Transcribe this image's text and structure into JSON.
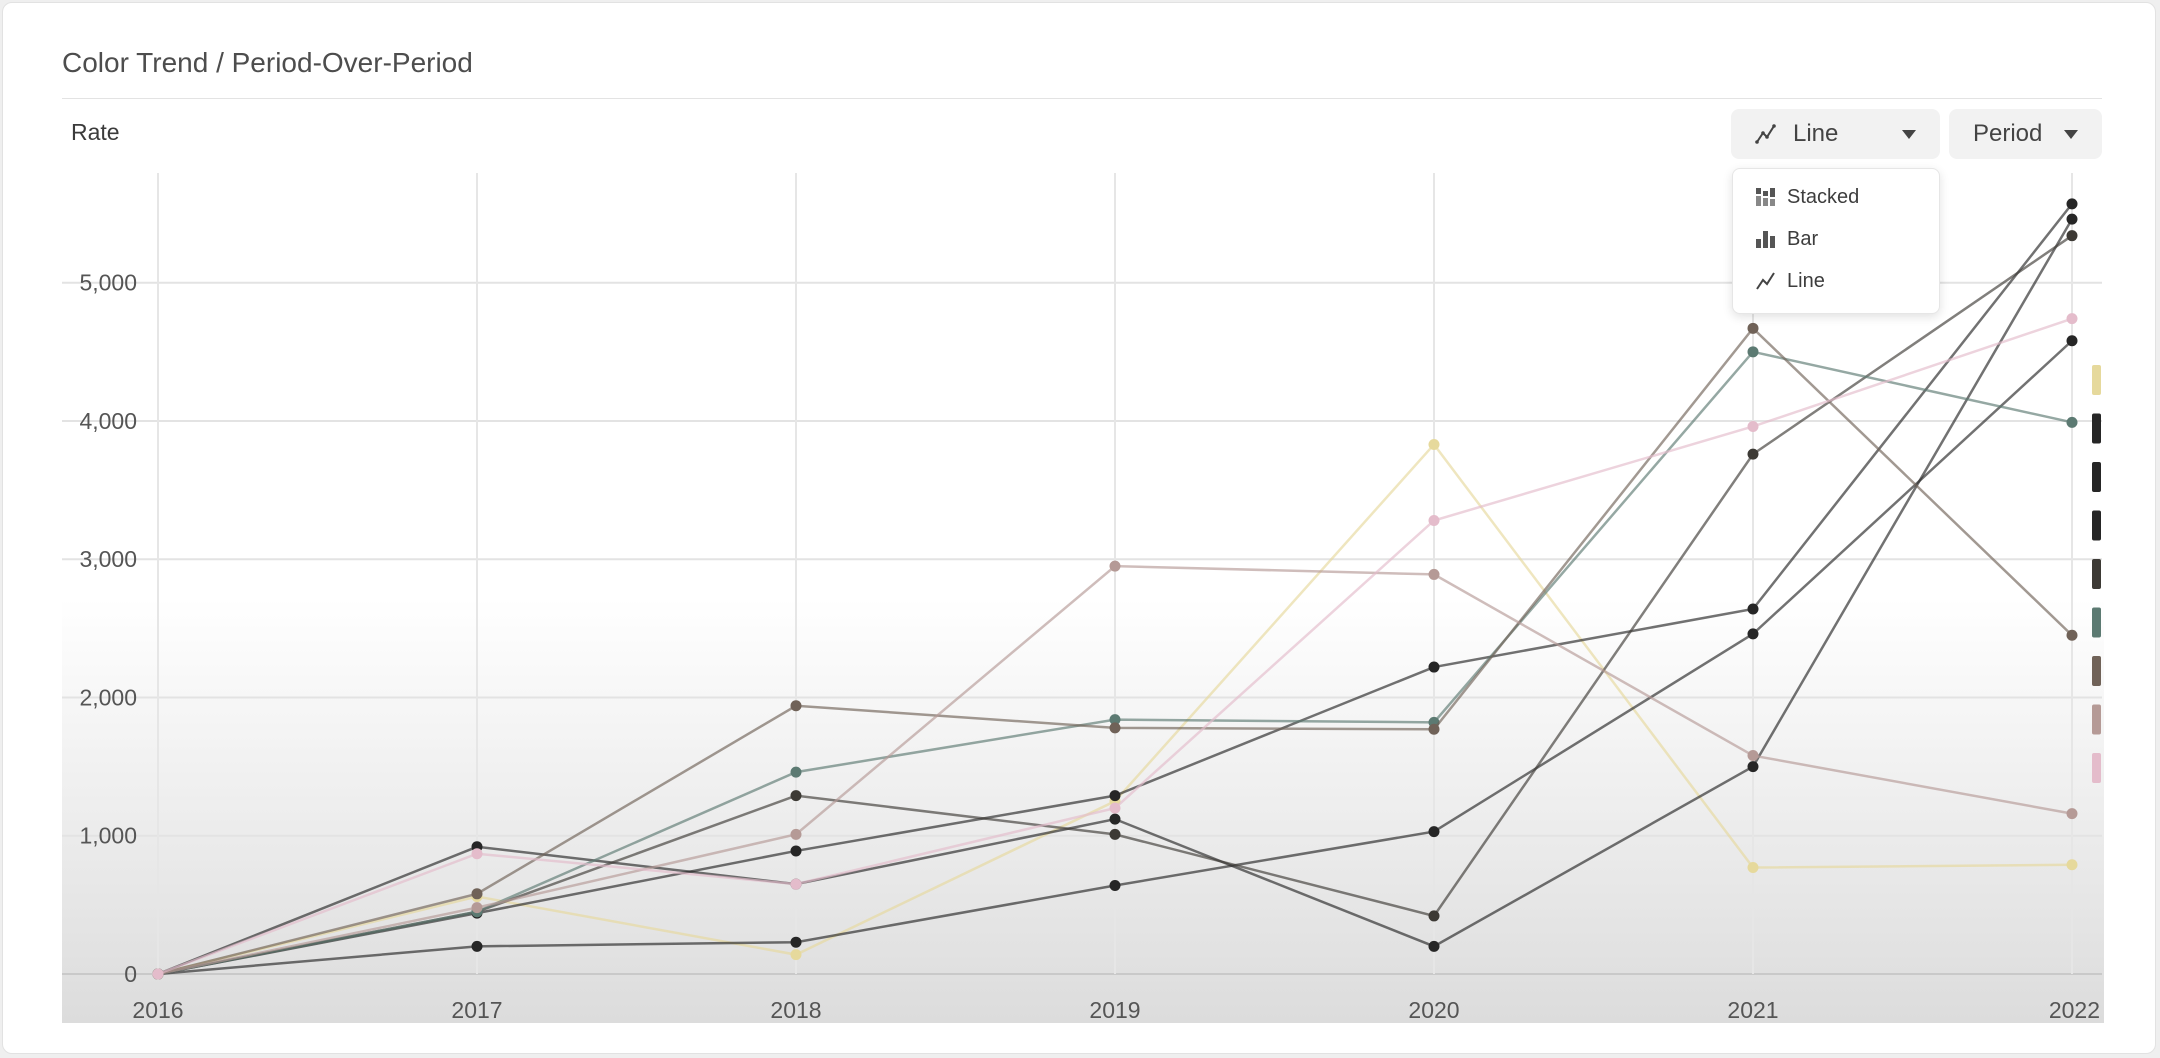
{
  "header": {
    "title": "Color Trend / Period-Over-Period",
    "metric_label": "Rate"
  },
  "controls": {
    "chart_type": {
      "selected": "Line",
      "icon": "line-chart-icon"
    },
    "period": {
      "selected": "Period"
    }
  },
  "chart_type_menu": {
    "items": [
      {
        "label": "Stacked",
        "icon": "stacked-bar-icon"
      },
      {
        "label": "Bar",
        "icon": "bar-chart-icon"
      },
      {
        "label": "Line",
        "icon": "line-chart-icon"
      }
    ]
  },
  "chart_data": {
    "type": "line",
    "x": [
      "2016",
      "2017",
      "2018",
      "2019",
      "2020",
      "2021",
      "2022"
    ],
    "ylim": [
      0,
      5750
    ],
    "yticks": [
      "0",
      "1,000",
      "2,000",
      "3,000",
      "4,000",
      "5,000"
    ],
    "ytick_values": [
      0,
      1000,
      2000,
      3000,
      4000,
      5000
    ],
    "grid": true,
    "legend": "swatches at right edge",
    "series": [
      {
        "color": "#e6d99c",
        "values": [
          0,
          560,
          140,
          1250,
          3830,
          770,
          790
        ]
      },
      {
        "color": "#262626",
        "values": [
          0,
          440,
          890,
          1290,
          2220,
          2640,
          5570
        ]
      },
      {
        "color": "#262626",
        "values": [
          0,
          920,
          650,
          1120,
          200,
          1500,
          5460
        ]
      },
      {
        "color": "#262626",
        "values": [
          0,
          200,
          230,
          640,
          1030,
          2460,
          4580
        ]
      },
      {
        "color": "#3d3a35",
        "values": [
          0,
          450,
          1290,
          1010,
          420,
          3760,
          5340
        ]
      },
      {
        "color": "#5c7a72",
        "values": [
          0,
          450,
          1460,
          1840,
          1820,
          4500,
          3990
        ]
      },
      {
        "color": "#706258",
        "values": [
          0,
          580,
          1940,
          1780,
          1770,
          4670,
          2450
        ]
      },
      {
        "color": "#b59a96",
        "values": [
          0,
          480,
          1010,
          2950,
          2890,
          1580,
          1160
        ]
      },
      {
        "color": "#e4bccb",
        "values": [
          0,
          870,
          650,
          1200,
          3280,
          3960,
          4740
        ]
      }
    ],
    "legend_swatches": [
      "#e6d99c",
      "#262626",
      "#262626",
      "#262626",
      "#3d3a35",
      "#5c7a72",
      "#706258",
      "#b59a96",
      "#e4bccb"
    ]
  }
}
